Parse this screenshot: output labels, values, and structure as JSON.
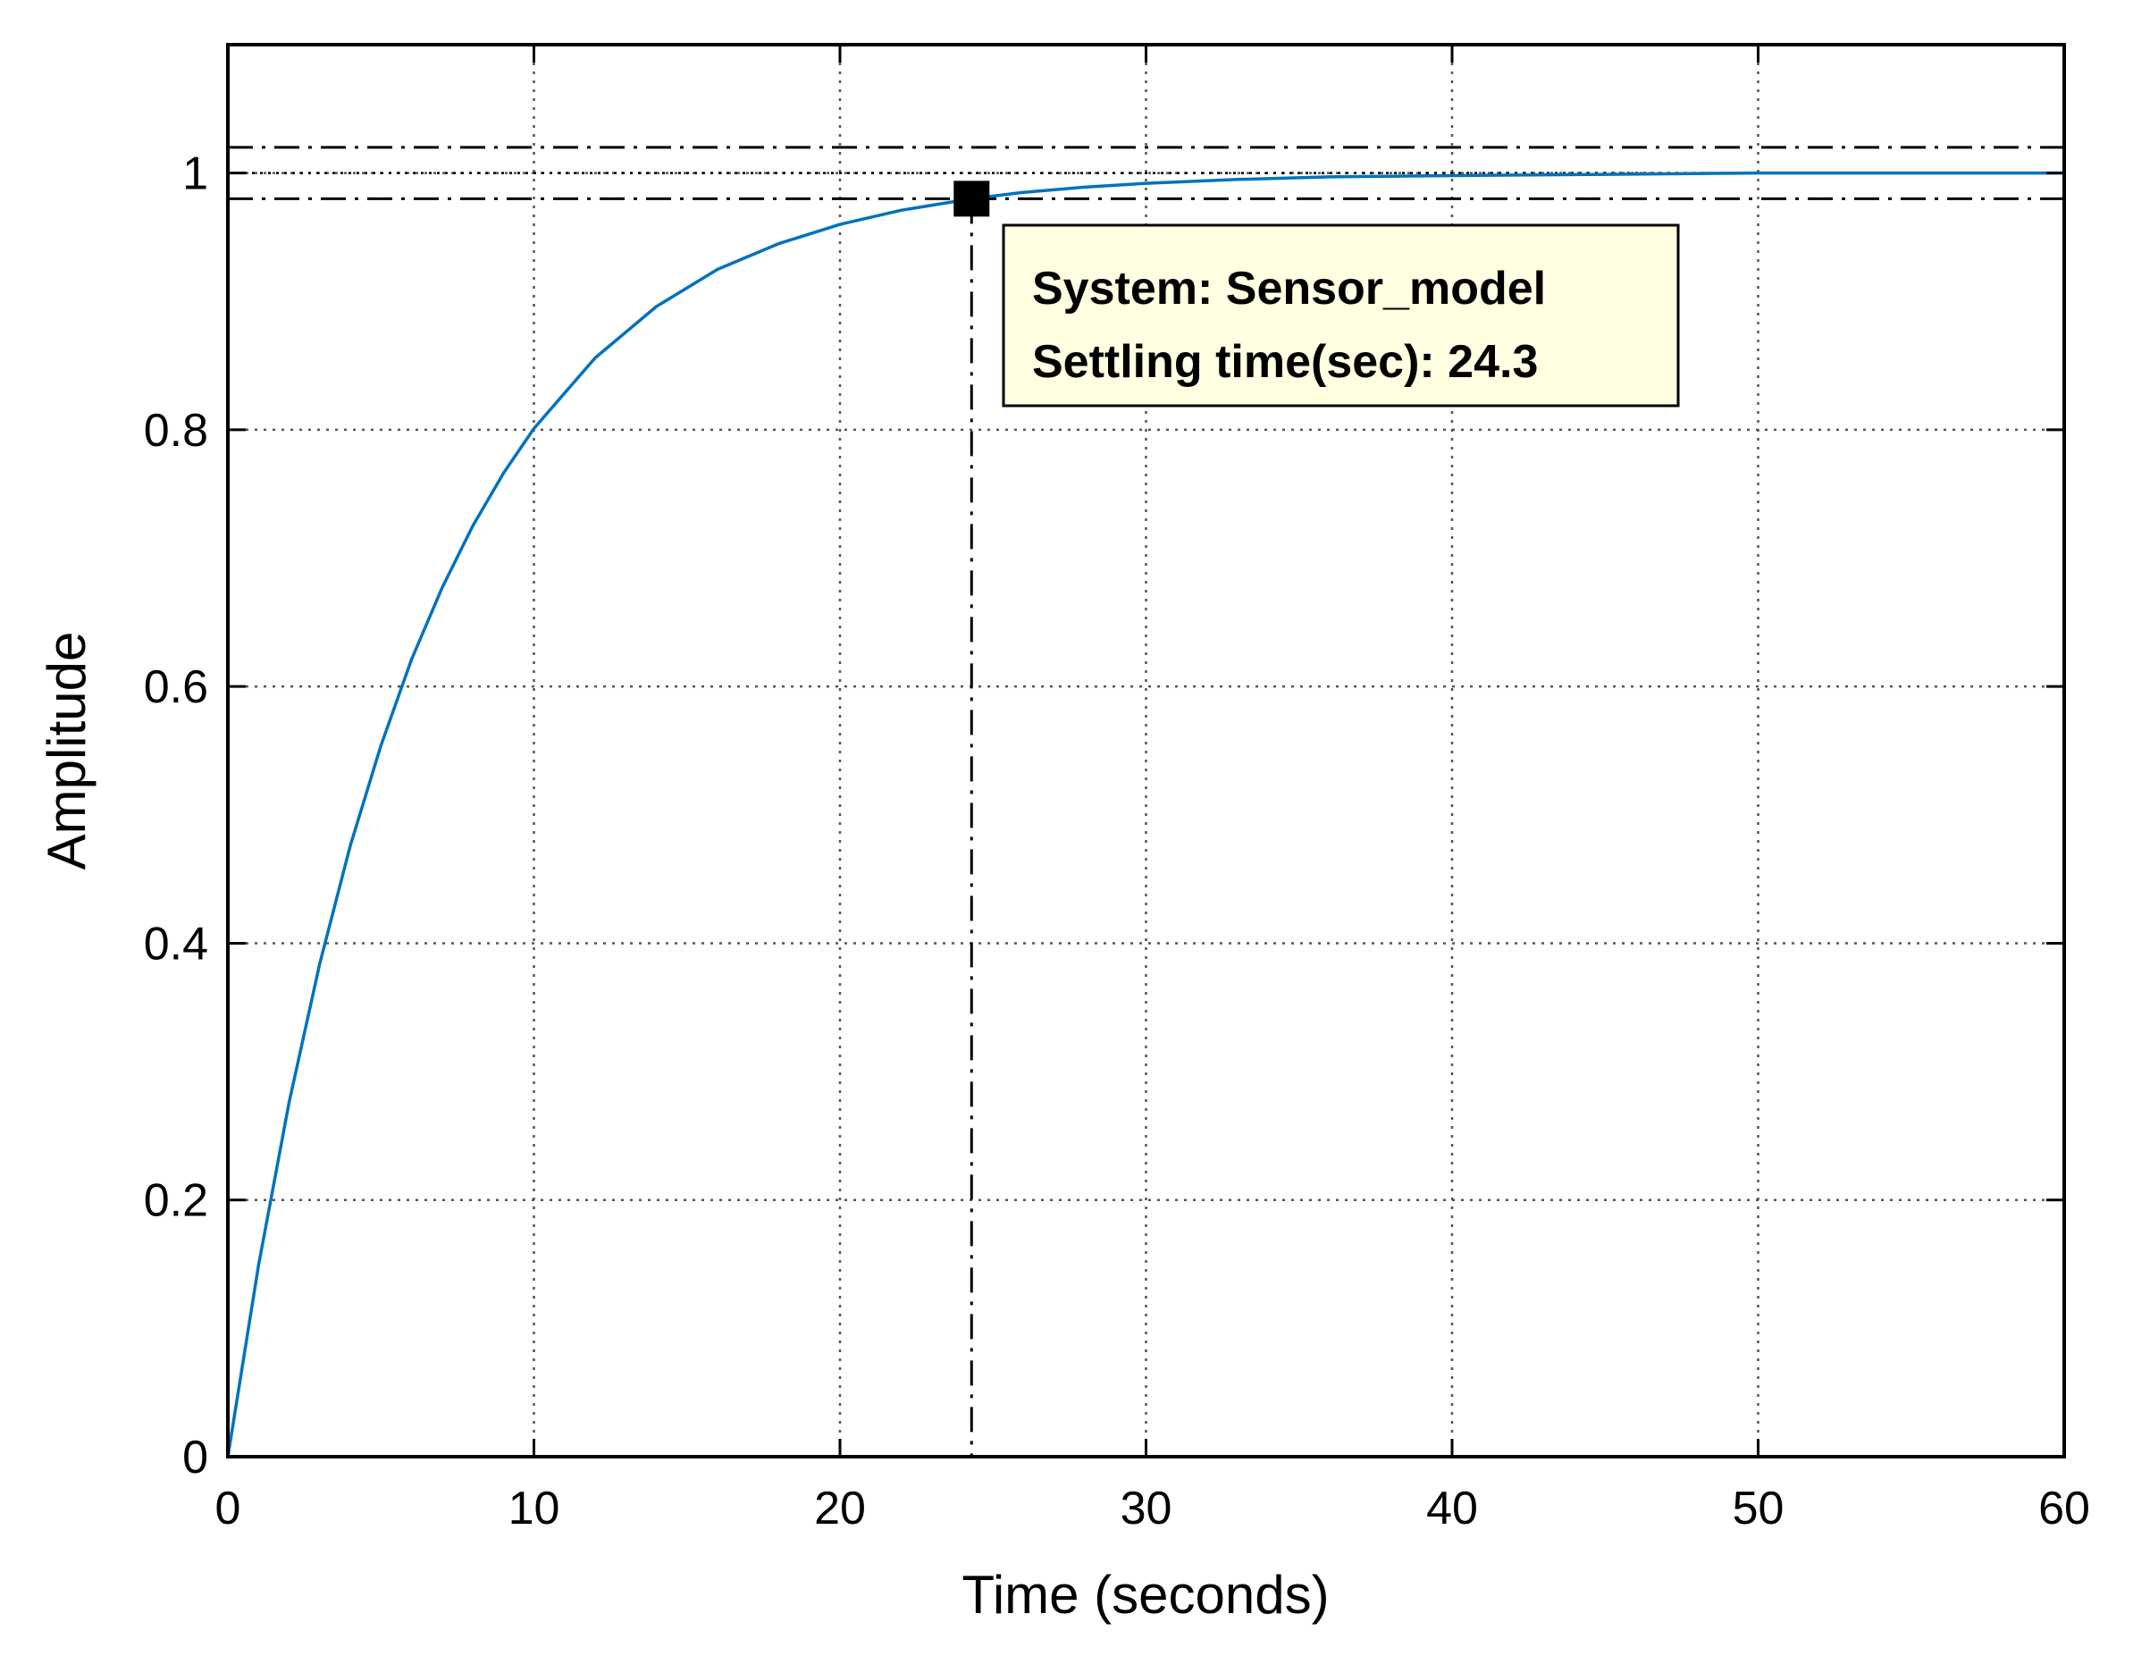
{
  "chart_data": {
    "type": "line",
    "title": "",
    "xlabel": "Time (seconds)",
    "ylabel": "Amplitude",
    "xlim": [
      0,
      60
    ],
    "ylim": [
      0,
      1.1
    ],
    "xticks": [
      0,
      10,
      20,
      30,
      40,
      50,
      60
    ],
    "xtick_labels": [
      "0",
      "10",
      "20",
      "30",
      "40",
      "50",
      "60"
    ],
    "yticks": [
      0,
      0.2,
      0.4,
      0.6,
      0.8,
      1
    ],
    "ytick_labels": [
      "0",
      "0.2",
      "0.4",
      "0.6",
      "0.8",
      "1"
    ],
    "grid": true,
    "series": [
      {
        "color": "#0072BD",
        "x": [
          0,
          1,
          2,
          3,
          4,
          5,
          6,
          7,
          8,
          9,
          10,
          12,
          14,
          16,
          18,
          20,
          22,
          24.3,
          26,
          28,
          30,
          33,
          36,
          40,
          45,
          50,
          55,
          60
        ],
        "y": [
          0,
          0.149,
          0.276,
          0.384,
          0.476,
          0.554,
          0.621,
          0.677,
          0.725,
          0.766,
          0.801,
          0.856,
          0.896,
          0.925,
          0.945,
          0.96,
          0.971,
          0.98,
          0.985,
          0.989,
          0.992,
          0.995,
          0.997,
          0.998,
          0.999,
          1.0,
          1.0,
          1.0
        ]
      }
    ],
    "reference_lines": {
      "final_value": 1.0,
      "upper_band": 1.02,
      "lower_band": 0.98
    },
    "marker": {
      "x": 24.3,
      "y": 0.98
    },
    "annotation": {
      "line1": "System: Sensor_model",
      "line2": "Settling time(sec): 24.3",
      "background": "#FFFFE1"
    },
    "colors": {
      "line": "#0072BD",
      "axes": "#000000",
      "grid": "#999999",
      "marker": "#000000"
    }
  }
}
